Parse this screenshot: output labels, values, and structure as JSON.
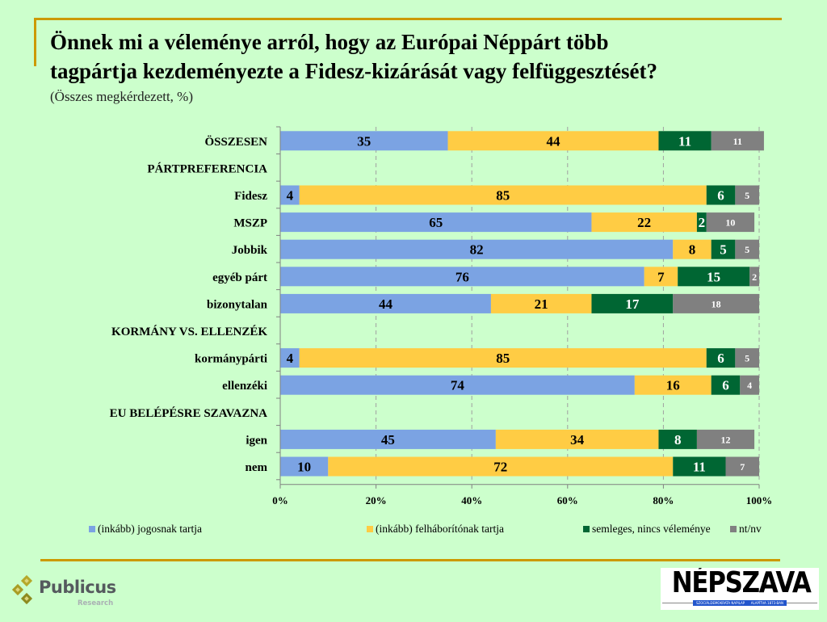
{
  "header": {
    "title_line1": "Önnek mi a véleménye arról, hogy az Európai Néppárt több",
    "title_line2": "tagpártja kezdeményezte a Fidesz-kizárását vagy felfüggesztését?",
    "subtitle": "(Összes megkérdezett, %)"
  },
  "chart_data": {
    "type": "bar",
    "orientation": "horizontal",
    "stacked": true,
    "title": "Önnek mi a véleménye arról, hogy az Európai Néppárt több tagpártja kezdeményezte a Fidesz-kizárását vagy felfüggesztését?",
    "subtitle": "(Összes megkérdezett, %)",
    "xlabel": "",
    "ylabel": "",
    "xlim": [
      0,
      100
    ],
    "x_ticks": [
      "0%",
      "20%",
      "40%",
      "60%",
      "80%",
      "100%"
    ],
    "grid": true,
    "legend_position": "bottom",
    "categories": [
      {
        "label": "ÖSSZESEN",
        "header": false,
        "caps": true
      },
      {
        "label": "PÁRTPREFERENCIA",
        "header": true
      },
      {
        "label": "Fidesz",
        "header": false
      },
      {
        "label": "MSZP",
        "header": false
      },
      {
        "label": "Jobbik",
        "header": false
      },
      {
        "label": "egyéb párt",
        "header": false
      },
      {
        "label": "bizonytalan",
        "header": false
      },
      {
        "label": "KORMÁNY VS. ELLENZÉK",
        "header": true
      },
      {
        "label": "kormánypárti",
        "header": false
      },
      {
        "label": "ellenzéki",
        "header": false
      },
      {
        "label": "EU BELÉPÉSRE SZAVAZNA",
        "header": true
      },
      {
        "label": "igen",
        "header": false
      },
      {
        "label": "nem",
        "header": false
      }
    ],
    "series": [
      {
        "name": "(inkább) jogosnak tartja",
        "color": "#7ba3e3",
        "label_color": "#000000",
        "values": [
          35,
          null,
          4,
          65,
          82,
          76,
          44,
          null,
          4,
          74,
          null,
          45,
          10
        ]
      },
      {
        "name": "(inkább) felháborítónak tartja",
        "color": "#ffcc44",
        "label_color": "#000000",
        "values": [
          44,
          null,
          85,
          22,
          8,
          7,
          21,
          null,
          85,
          16,
          null,
          34,
          72
        ]
      },
      {
        "name": "semleges, nincs véleménye",
        "color": "#006633",
        "label_color": "#ffffff",
        "values": [
          11,
          null,
          6,
          2,
          5,
          15,
          17,
          null,
          6,
          6,
          null,
          8,
          11
        ]
      },
      {
        "name": "nt/nv",
        "color": "#808080",
        "label_color": "#ffffff",
        "values": [
          11,
          null,
          5,
          10,
          5,
          2,
          18,
          null,
          5,
          4,
          null,
          12,
          7
        ]
      }
    ]
  },
  "footer": {
    "publicus_name": "Publicus",
    "publicus_sub": "Research",
    "nepszava_name": "NÉPSZAVA",
    "nepszava_tag_left": "SZOCIÁLDEMOKRATA NAPILAP",
    "nepszava_tag_right": "ALAPÍTVA 1873-BAN"
  }
}
